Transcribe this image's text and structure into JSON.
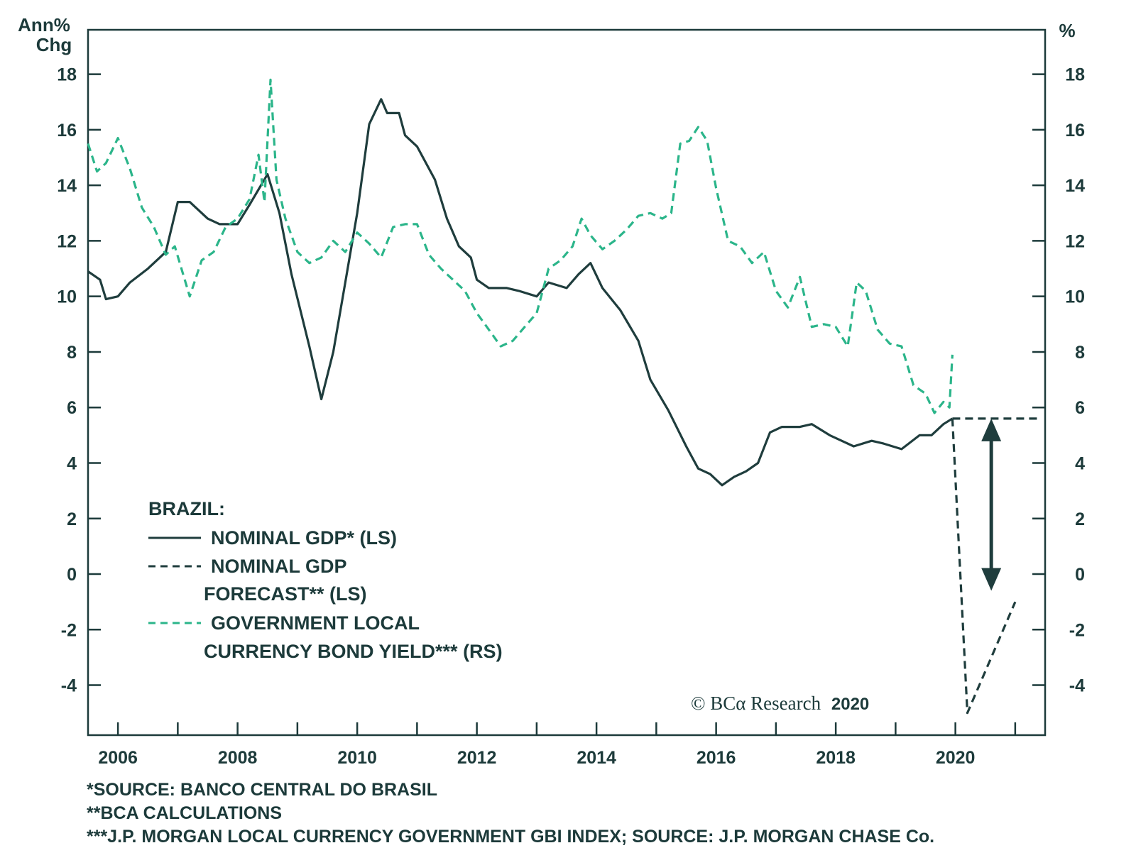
{
  "colors": {
    "gdp": "#1f3d3d",
    "bond": "#2bb58a",
    "axis": "#1c3a3a",
    "background": "#ffffff"
  },
  "chart_data": {
    "type": "line",
    "left_unit_label": [
      "Ann%",
      "Chg"
    ],
    "right_unit_label": "%",
    "x_ticks": [
      "2006",
      "2008",
      "2010",
      "2012",
      "2014",
      "2016",
      "2018",
      "2020"
    ],
    "xlim": [
      2005.5,
      2021.5
    ],
    "left_ylim": [
      -5.8,
      19.6
    ],
    "left_yticks": [
      "18",
      "16",
      "14",
      "12",
      "10",
      "8",
      "6",
      "4",
      "2",
      "0",
      "-2",
      "-4"
    ],
    "right_ylim": [
      -5.8,
      19.6
    ],
    "right_yticks": [
      "18",
      "16",
      "14",
      "12",
      "10",
      "8",
      "6",
      "4",
      "2",
      "0",
      "-2",
      "-4"
    ],
    "grid": false,
    "legend": {
      "title": "BRAZIL:",
      "entries": [
        {
          "label_lines": [
            "NOMINAL GDP* (LS)"
          ],
          "style": "solid",
          "color": "#1f3d3d"
        },
        {
          "label_lines": [
            "NOMINAL GDP",
            "FORECAST** (LS)"
          ],
          "style": "dashed",
          "color": "#1f3d3d"
        },
        {
          "label_lines": [
            "GOVERNMENT LOCAL",
            "CURRENCY BOND YIELD*** (RS)"
          ],
          "style": "dashed",
          "color": "#2bb58a"
        }
      ],
      "placement": "lower-left"
    },
    "series": [
      {
        "name": "NOMINAL GDP* (LS)",
        "axis": "left",
        "style": "solid",
        "color": "#1f3d3d",
        "x": [
          2005.5,
          2005.7,
          2005.8,
          2006.0,
          2006.2,
          2006.5,
          2006.8,
          2007.0,
          2007.2,
          2007.5,
          2007.7,
          2008.0,
          2008.2,
          2008.5,
          2008.7,
          2008.9,
          2009.2,
          2009.4,
          2009.6,
          2009.8,
          2010.0,
          2010.2,
          2010.4,
          2010.5,
          2010.7,
          2010.8,
          2011.0,
          2011.3,
          2011.5,
          2011.7,
          2011.9,
          2012.0,
          2012.2,
          2012.5,
          2012.7,
          2013.0,
          2013.2,
          2013.5,
          2013.7,
          2013.9,
          2014.1,
          2014.4,
          2014.7,
          2014.9,
          2015.2,
          2015.5,
          2015.7,
          2015.9,
          2016.1,
          2016.3,
          2016.5,
          2016.7,
          2016.9,
          2017.1,
          2017.4,
          2017.6,
          2017.9,
          2018.1,
          2018.3,
          2018.6,
          2018.8,
          2019.1,
          2019.4,
          2019.6,
          2019.8,
          2019.95
        ],
        "y": [
          10.9,
          10.6,
          9.9,
          10.0,
          10.5,
          11.0,
          11.6,
          13.4,
          13.4,
          12.8,
          12.6,
          12.6,
          13.3,
          14.4,
          13.0,
          10.8,
          8.2,
          6.3,
          8.0,
          10.5,
          13.0,
          16.2,
          17.1,
          16.6,
          16.6,
          15.8,
          15.4,
          14.2,
          12.8,
          11.8,
          11.4,
          10.6,
          10.3,
          10.3,
          10.2,
          10.0,
          10.5,
          10.3,
          10.8,
          11.2,
          10.3,
          9.5,
          8.4,
          7.0,
          5.9,
          4.6,
          3.8,
          3.6,
          3.2,
          3.5,
          3.7,
          4.0,
          5.1,
          5.3,
          5.3,
          5.4,
          5.0,
          4.8,
          4.6,
          4.8,
          4.7,
          4.5,
          5.0,
          5.0,
          5.4,
          5.6
        ]
      },
      {
        "name": "NOMINAL GDP FORECAST** (LS)",
        "axis": "left",
        "style": "dashed",
        "color": "#1f3d3d",
        "segments": [
          {
            "x": [
              2019.95,
              2020.2,
              2021.0
            ],
            "y": [
              5.6,
              -5.0,
              -1.0
            ]
          },
          {
            "x": [
              2019.95,
              2021.4
            ],
            "y": [
              5.6,
              5.6
            ]
          }
        ]
      },
      {
        "name": "GOVERNMENT LOCAL CURRENCY BOND YIELD*** (RS)",
        "axis": "right",
        "style": "dashed",
        "color": "#2bb58a",
        "x": [
          2005.5,
          2005.65,
          2005.8,
          2006.0,
          2006.2,
          2006.4,
          2006.6,
          2006.8,
          2006.95,
          2007.2,
          2007.4,
          2007.6,
          2007.8,
          2008.0,
          2008.2,
          2008.35,
          2008.45,
          2008.55,
          2008.65,
          2008.8,
          2009.0,
          2009.2,
          2009.4,
          2009.6,
          2009.8,
          2010.0,
          2010.2,
          2010.4,
          2010.6,
          2010.8,
          2011.0,
          2011.2,
          2011.4,
          2011.6,
          2011.8,
          2012.0,
          2012.2,
          2012.4,
          2012.6,
          2012.8,
          2013.0,
          2013.2,
          2013.4,
          2013.6,
          2013.75,
          2013.9,
          2014.1,
          2014.3,
          2014.5,
          2014.7,
          2014.9,
          2015.1,
          2015.25,
          2015.4,
          2015.55,
          2015.7,
          2015.85,
          2016.0,
          2016.2,
          2016.4,
          2016.6,
          2016.8,
          2017.0,
          2017.2,
          2017.4,
          2017.6,
          2017.8,
          2018.0,
          2018.2,
          2018.35,
          2018.5,
          2018.7,
          2018.9,
          2019.1,
          2019.3,
          2019.5,
          2019.65,
          2019.8,
          2019.9,
          2019.95
        ],
        "y": [
          15.5,
          14.5,
          14.8,
          15.7,
          14.6,
          13.2,
          12.5,
          11.5,
          11.8,
          10.0,
          11.3,
          11.6,
          12.5,
          12.8,
          13.5,
          15.1,
          13.4,
          17.8,
          14.2,
          12.8,
          11.6,
          11.2,
          11.4,
          12.0,
          11.6,
          12.3,
          11.9,
          11.4,
          12.5,
          12.6,
          12.6,
          11.5,
          11.0,
          10.6,
          10.2,
          9.4,
          8.8,
          8.2,
          8.4,
          8.9,
          9.4,
          11.0,
          11.3,
          11.8,
          12.8,
          12.2,
          11.7,
          12.0,
          12.4,
          12.9,
          13.0,
          12.8,
          13.0,
          15.5,
          15.6,
          16.1,
          15.6,
          13.9,
          12.0,
          11.8,
          11.2,
          11.6,
          10.2,
          9.6,
          10.7,
          8.9,
          9.0,
          8.9,
          8.2,
          10.5,
          10.2,
          8.8,
          8.3,
          8.2,
          6.8,
          6.5,
          5.8,
          6.2,
          6.0,
          7.9
        ]
      }
    ],
    "annotations": [
      {
        "type": "double-arrow",
        "x": 2020.6,
        "y_from": 5.6,
        "y_to": -0.6
      }
    ]
  },
  "copyright": {
    "text": "© BCα Research",
    "year": "2020"
  },
  "footnotes": [
    "*SOURCE: BANCO CENTRAL DO BRASIL",
    "**BCA CALCULATIONS",
    "***J.P. MORGAN LOCAL CURRENCY GOVERNMENT GBI INDEX; SOURCE: J.P. MORGAN CHASE Co."
  ]
}
